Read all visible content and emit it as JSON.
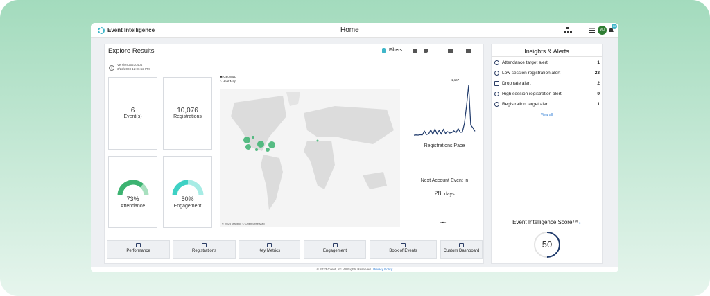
{
  "header": {
    "app_name": "Event Intelligence",
    "page_title": "Home",
    "avatar": "MD",
    "badge": "10"
  },
  "explore": {
    "title": "Explore Results",
    "filters_label": "Filters:",
    "version": "Version 20230404",
    "timestamp": "3/22/2023 12:06:52 PM",
    "stats": [
      {
        "value": "6",
        "label": "Event(s)"
      },
      {
        "value": "10,076",
        "label": "Registrations"
      }
    ],
    "gauges": [
      {
        "value": 73,
        "value_label": "73%",
        "label": "Attendance"
      },
      {
        "value": 50,
        "value_label": "50%",
        "label": "Engagement"
      }
    ],
    "map": {
      "options": [
        "Geo Map",
        "Heat Map"
      ],
      "attribution": "© 2023 Mapbox © OpenStreetMap"
    },
    "pace": {
      "title": "Registrations Pace",
      "peak_label": "1,167",
      "values": [
        30,
        35,
        32,
        40,
        38,
        120,
        45,
        60,
        150,
        50,
        170,
        55,
        140,
        60,
        160,
        70,
        110,
        80,
        90,
        130,
        85,
        180,
        95,
        100,
        300,
        700,
        1167,
        260,
        200,
        120
      ]
    },
    "next_event": {
      "title": "Next Account Event in",
      "count": "28",
      "unit": "days"
    },
    "nav": [
      "Performance",
      "Registrations",
      "Key Metrics",
      "Engagement",
      "Book of Events",
      "Custom Dashboard"
    ]
  },
  "insights": {
    "title": "Insights & Alerts",
    "alerts": [
      {
        "label": "Attendance target alert",
        "count": "1"
      },
      {
        "label": "Low session registration alert",
        "count": "23"
      },
      {
        "label": "Drop rate alert",
        "count": "2"
      },
      {
        "label": "High session registration alert",
        "count": "9"
      },
      {
        "label": "Registration target alert",
        "count": "1"
      }
    ],
    "view_all": "View all",
    "score": {
      "title": "Event Intelligence Score™",
      "value": 50
    }
  },
  "footer": {
    "copyright": "© 2023 Cvent, Inc. All Rights Reserved |",
    "link": "Privacy Policy"
  }
}
